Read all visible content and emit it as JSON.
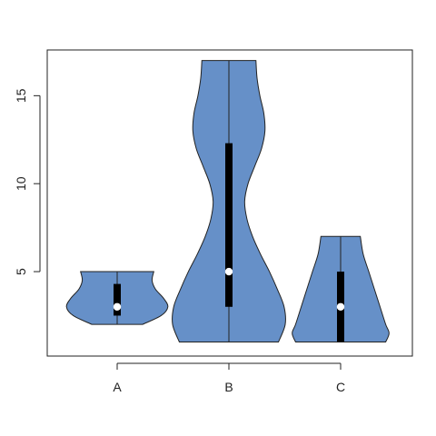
{
  "chart_data": {
    "type": "violin",
    "title": "",
    "xlabel": "",
    "ylabel": "",
    "categories": [
      "A",
      "B",
      "C"
    ],
    "ylim": [
      0.2,
      17.6
    ],
    "yticks": [
      5,
      10,
      15
    ],
    "fill_color": "#6690C8",
    "outline_color": "#222222",
    "box_color": "#000000",
    "median_color": "#FFFFFF",
    "violins": [
      {
        "category": "A",
        "min": 2,
        "max": 5,
        "q1": 2.5,
        "median": 3,
        "q3": 4.3,
        "density": [
          [
            2,
            0.45
          ],
          [
            2.5,
            0.78
          ],
          [
            3,
            0.9
          ],
          [
            3.5,
            0.82
          ],
          [
            4,
            0.68
          ],
          [
            4.5,
            0.62
          ],
          [
            5,
            0.65
          ]
        ]
      },
      {
        "category": "B",
        "min": 1,
        "max": 17,
        "q1": 3,
        "median": 5,
        "q3": 12.3,
        "density": [
          [
            1,
            0.88
          ],
          [
            2,
            1.0
          ],
          [
            3,
            0.98
          ],
          [
            4,
            0.86
          ],
          [
            5,
            0.72
          ],
          [
            6,
            0.56
          ],
          [
            7,
            0.42
          ],
          [
            8,
            0.32
          ],
          [
            9,
            0.28
          ],
          [
            10,
            0.34
          ],
          [
            11,
            0.46
          ],
          [
            12,
            0.58
          ],
          [
            13,
            0.64
          ],
          [
            14,
            0.62
          ],
          [
            15,
            0.55
          ],
          [
            16,
            0.5
          ],
          [
            17,
            0.48
          ]
        ]
      },
      {
        "category": "C",
        "min": 1,
        "max": 7,
        "q1": 1,
        "median": 3,
        "q3": 5,
        "density": [
          [
            1,
            0.8
          ],
          [
            1.5,
            0.86
          ],
          [
            2,
            0.8
          ],
          [
            3,
            0.7
          ],
          [
            4,
            0.6
          ],
          [
            5,
            0.5
          ],
          [
            6,
            0.4
          ],
          [
            7,
            0.35
          ]
        ]
      }
    ]
  }
}
